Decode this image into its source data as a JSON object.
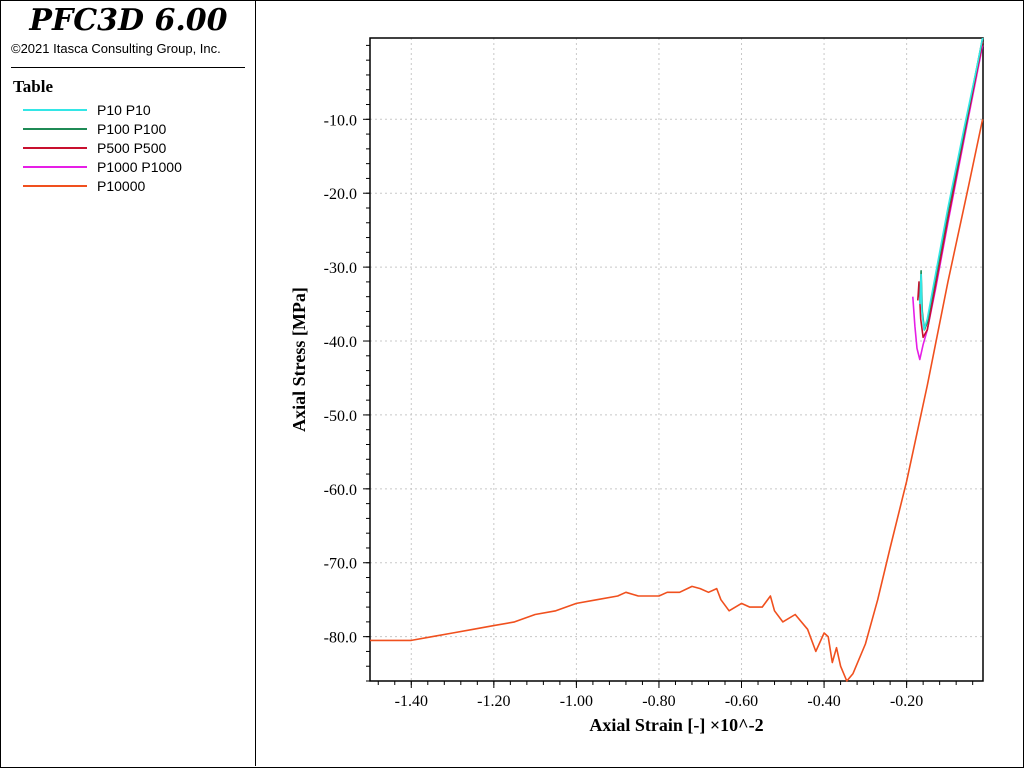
{
  "header": {
    "app_title": "PFC3D 6.00",
    "copyright": "©2021 Itasca Consulting Group, Inc."
  },
  "legend": {
    "title": "Table",
    "items": [
      {
        "label": "P10 P10",
        "color": "#33e6e6"
      },
      {
        "label": "P100 P100",
        "color": "#1f8a55"
      },
      {
        "label": "P500 P500",
        "color": "#c8102e"
      },
      {
        "label": "P1000 P1000",
        "color": "#e61ee6"
      },
      {
        "label": "P10000",
        "color": "#f0501e"
      }
    ]
  },
  "chart_data": {
    "type": "line",
    "xlabel": "Axial Strain [-] ×10^-2",
    "ylabel": "Axial Stress [MPa]",
    "xlim": [
      -1.5,
      -0.015
    ],
    "ylim": [
      -86,
      1
    ],
    "x_ticks": [
      -1.4,
      -1.2,
      -1.0,
      -0.8,
      -0.6,
      -0.4,
      -0.2
    ],
    "x_tick_labels": [
      "-1.40",
      "-1.20",
      "-1.00",
      "-0.80",
      "-0.60",
      "-0.40",
      "-0.20"
    ],
    "y_ticks": [
      -10,
      -20,
      -30,
      -40,
      -50,
      -60,
      -70,
      -80
    ],
    "y_tick_labels": [
      "-10.0",
      "-20.0",
      "-30.0",
      "-40.0",
      "-50.0",
      "-60.0",
      "-70.0",
      "-80.0"
    ],
    "grid": true,
    "series": [
      {
        "name": "P10 P10",
        "color": "#33e6e6",
        "points": [
          [
            -0.016,
            1.0
          ],
          [
            -0.03,
            -3.0
          ],
          [
            -0.06,
            -11.0
          ],
          [
            -0.1,
            -22.0
          ],
          [
            -0.13,
            -31.0
          ],
          [
            -0.15,
            -37.0
          ],
          [
            -0.158,
            -38.5
          ],
          [
            -0.163,
            -36.0
          ],
          [
            -0.165,
            -31.0
          ],
          [
            -0.168,
            -35.0
          ]
        ]
      },
      {
        "name": "P100 P100",
        "color": "#1f8a55",
        "points": [
          [
            -0.016,
            1.0
          ],
          [
            -0.03,
            -3.0
          ],
          [
            -0.06,
            -11.5
          ],
          [
            -0.1,
            -22.5
          ],
          [
            -0.13,
            -31.5
          ],
          [
            -0.15,
            -37.5
          ],
          [
            -0.157,
            -38.5
          ],
          [
            -0.162,
            -36.0
          ],
          [
            -0.165,
            -30.5
          ],
          [
            -0.168,
            -35.0
          ]
        ]
      },
      {
        "name": "P500 P500",
        "color": "#c8102e",
        "points": [
          [
            -0.016,
            0.5
          ],
          [
            -0.03,
            -3.5
          ],
          [
            -0.06,
            -12.0
          ],
          [
            -0.1,
            -23.5
          ],
          [
            -0.13,
            -32.5
          ],
          [
            -0.15,
            -38.5
          ],
          [
            -0.16,
            -39.5
          ],
          [
            -0.166,
            -37.0
          ],
          [
            -0.17,
            -32.0
          ],
          [
            -0.173,
            -34.5
          ]
        ]
      },
      {
        "name": "P1000 P1000",
        "color": "#e61ee6",
        "points": [
          [
            -0.016,
            0.0
          ],
          [
            -0.03,
            -4.0
          ],
          [
            -0.06,
            -12.5
          ],
          [
            -0.1,
            -24.0
          ],
          [
            -0.13,
            -33.0
          ],
          [
            -0.15,
            -38.5
          ],
          [
            -0.16,
            -40.5
          ],
          [
            -0.168,
            -42.5
          ],
          [
            -0.175,
            -41.0
          ],
          [
            -0.18,
            -38.0
          ],
          [
            -0.185,
            -34.0
          ]
        ]
      },
      {
        "name": "P10000",
        "color": "#f0501e",
        "points": [
          [
            -0.016,
            -10.0
          ],
          [
            -0.05,
            -19.0
          ],
          [
            -0.1,
            -32.0
          ],
          [
            -0.15,
            -46.0
          ],
          [
            -0.2,
            -59.0
          ],
          [
            -0.24,
            -68.0
          ],
          [
            -0.27,
            -75.0
          ],
          [
            -0.3,
            -81.0
          ],
          [
            -0.33,
            -85.0
          ],
          [
            -0.345,
            -86.0
          ],
          [
            -0.36,
            -84.0
          ],
          [
            -0.37,
            -81.5
          ],
          [
            -0.38,
            -83.5
          ],
          [
            -0.39,
            -80.0
          ],
          [
            -0.4,
            -79.5
          ],
          [
            -0.42,
            -82.0
          ],
          [
            -0.44,
            -79.0
          ],
          [
            -0.47,
            -77.0
          ],
          [
            -0.5,
            -78.0
          ],
          [
            -0.52,
            -76.5
          ],
          [
            -0.53,
            -74.5
          ],
          [
            -0.55,
            -76.0
          ],
          [
            -0.58,
            -76.0
          ],
          [
            -0.6,
            -75.5
          ],
          [
            -0.63,
            -76.5
          ],
          [
            -0.65,
            -75.0
          ],
          [
            -0.66,
            -73.5
          ],
          [
            -0.68,
            -74.0
          ],
          [
            -0.7,
            -73.5
          ],
          [
            -0.72,
            -73.2
          ],
          [
            -0.75,
            -74.0
          ],
          [
            -0.78,
            -74.0
          ],
          [
            -0.8,
            -74.5
          ],
          [
            -0.85,
            -74.5
          ],
          [
            -0.88,
            -74.0
          ],
          [
            -0.9,
            -74.5
          ],
          [
            -0.95,
            -75.0
          ],
          [
            -1.0,
            -75.5
          ],
          [
            -1.05,
            -76.5
          ],
          [
            -1.1,
            -77.0
          ],
          [
            -1.15,
            -78.0
          ],
          [
            -1.2,
            -78.5
          ],
          [
            -1.25,
            -79.0
          ],
          [
            -1.3,
            -79.5
          ],
          [
            -1.35,
            -80.0
          ],
          [
            -1.4,
            -80.5
          ],
          [
            -1.45,
            -80.5
          ],
          [
            -1.5,
            -80.5
          ]
        ]
      }
    ]
  }
}
